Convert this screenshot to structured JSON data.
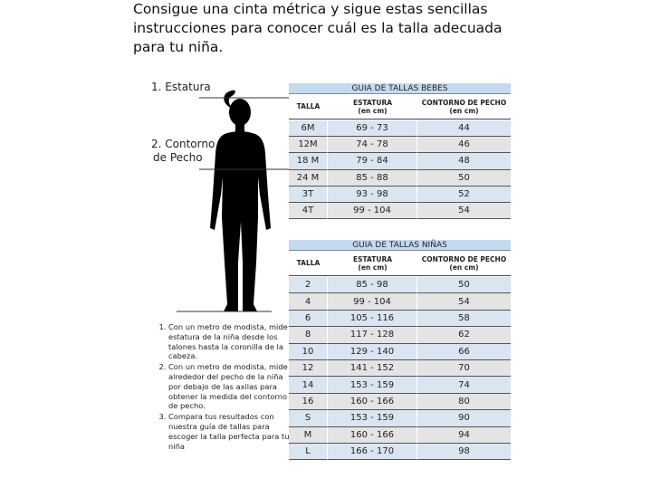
{
  "intro": "Consigue una cinta métrica y sigue estas sencillas instrucciones para conocer cuál es la talla adecuada para tu niña.",
  "labels": {
    "estatura": "1. Estatura",
    "contorno_1": "2. Contorno",
    "contorno_2": "de Pecho"
  },
  "tables": [
    {
      "title": "GUIA DE TALLAS BEBES",
      "headers": [
        "TALLA",
        "ESTATURA",
        "CONTORNO DE PECHO"
      ],
      "header_units": [
        "(en cm)",
        "(en cm)"
      ],
      "rows": [
        [
          "6M",
          "69 - 73",
          "44"
        ],
        [
          "12M",
          "74 - 78",
          "46"
        ],
        [
          "18 M",
          "79 - 84",
          "48"
        ],
        [
          "24 M",
          "85 - 88",
          "50"
        ],
        [
          "3T",
          "93 - 98",
          "52"
        ],
        [
          "4T",
          "99 - 104",
          "54"
        ]
      ]
    },
    {
      "title": "GUIA DE TALLAS NIÑAS",
      "headers": [
        "TALLA",
        "ESTATURA",
        "CONTORNO DE PECHO"
      ],
      "header_units": [
        "(en cm)",
        "(en cm)"
      ],
      "rows": [
        [
          "2",
          "85 - 98",
          "50"
        ],
        [
          "4",
          "99 - 104",
          "54"
        ],
        [
          "6",
          "105 - 116",
          "58"
        ],
        [
          "8",
          "117 - 128",
          "62"
        ],
        [
          "10",
          "129 - 140",
          "66"
        ],
        [
          "12",
          "141 - 152",
          "70"
        ],
        [
          "14",
          "153 - 159",
          "74"
        ],
        [
          "16",
          "160 - 166",
          "80"
        ],
        [
          "S",
          "153 - 159",
          "90"
        ],
        [
          "M",
          "160 - 166",
          "94"
        ],
        [
          "L",
          "166 - 170",
          "98"
        ]
      ]
    }
  ],
  "instructions": [
    "Con un metro de modista, mide la estatura de la niña desde los talones hasta la coronilla de la cabeza.",
    "Con un metro de modista, mide alrededor del pecho de la niña por debajo de las axilas para obtener la medida del contorno de pecho.",
    "Compara tus resultados con nuestra guía de tallas para escoger la talla perfecta para tu niña"
  ]
}
